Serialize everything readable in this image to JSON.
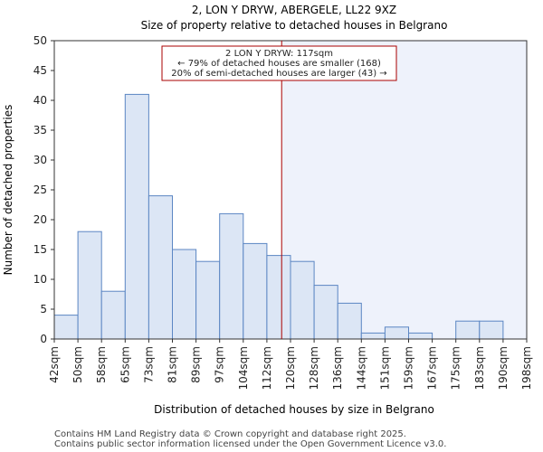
{
  "chart_data": {
    "type": "bar",
    "title": "2, LON Y DRYW, ABERGELE, LL22 9XZ",
    "subtitle": "Size of property relative to detached houses in Belgrano",
    "xlabel": "Distribution of detached houses by size in Belgrano",
    "ylabel": "Number of detached properties",
    "ylim": [
      0,
      50
    ],
    "yticks": [
      0,
      5,
      10,
      15,
      20,
      25,
      30,
      35,
      40,
      45,
      50
    ],
    "xticks": [
      "42sqm",
      "50sqm",
      "58sqm",
      "65sqm",
      "73sqm",
      "81sqm",
      "89sqm",
      "97sqm",
      "104sqm",
      "112sqm",
      "120sqm",
      "128sqm",
      "136sqm",
      "144sqm",
      "151sqm",
      "159sqm",
      "167sqm",
      "175sqm",
      "183sqm",
      "190sqm",
      "198sqm"
    ],
    "values": [
      4,
      18,
      8,
      41,
      24,
      15,
      13,
      21,
      16,
      14,
      13,
      9,
      6,
      1,
      2,
      1,
      0,
      3,
      3,
      0
    ],
    "property_marker": {
      "value_sqm": 117,
      "color": "#aa0000",
      "annotation": [
        "2 LON Y DRYW: 117sqm",
        "← 79% of detached houses are smaller (168)",
        "20% of semi-detached houses are larger (43) →"
      ]
    },
    "bar_fill": "#dce6f5",
    "bar_edge": "#5b86c3",
    "shade_fill": "#eef2fb"
  },
  "footer": {
    "line1": "Contains HM Land Registry data © Crown copyright and database right 2025.",
    "line2": "Contains public sector information licensed under the Open Government Licence v3.0."
  }
}
